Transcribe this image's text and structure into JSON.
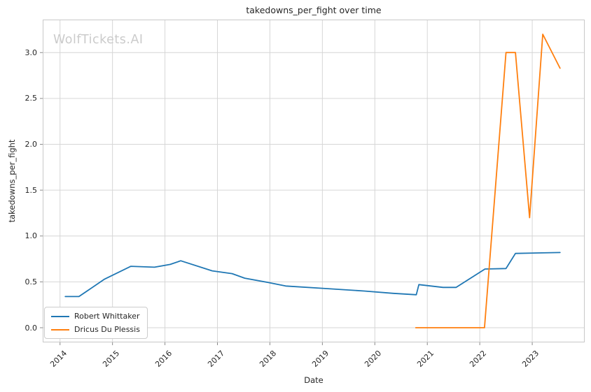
{
  "figure": {
    "background": "#ffffff",
    "watermark": "WolfTickets.AI"
  },
  "chart_data": {
    "type": "line",
    "title": "takedowns_per_fight over time",
    "xlabel": "Date",
    "ylabel": "takedowns_per_fight",
    "grid": true,
    "legend_position": "lower left",
    "xlim": [
      2013.67,
      2024.0
    ],
    "ylim": [
      -0.16,
      3.36
    ],
    "xticks": [
      "2014",
      "2015",
      "2016",
      "2017",
      "2018",
      "2019",
      "2020",
      "2021",
      "2022",
      "2023"
    ],
    "yticks": [
      "0.0",
      "0.5",
      "1.0",
      "1.5",
      "2.0",
      "2.5",
      "3.0"
    ],
    "colors": {
      "grid": "#d6d6d6",
      "spine": "#c8c8c8",
      "tick": "#8a8a8a",
      "text": "#262626",
      "watermark": "#cbcbcb",
      "series_blue": "#1f77b4",
      "series_orange": "#ff7f0e"
    },
    "series": [
      {
        "name": "Robert Whittaker",
        "color": "#1f77b4",
        "points": [
          [
            2014.1,
            0.34
          ],
          [
            2014.36,
            0.34
          ],
          [
            2014.85,
            0.53
          ],
          [
            2015.35,
            0.67
          ],
          [
            2015.8,
            0.66
          ],
          [
            2016.1,
            0.69
          ],
          [
            2016.3,
            0.73
          ],
          [
            2016.9,
            0.62
          ],
          [
            2017.28,
            0.59
          ],
          [
            2017.52,
            0.54
          ],
          [
            2018.0,
            0.49
          ],
          [
            2018.3,
            0.455
          ],
          [
            2019.0,
            0.43
          ],
          [
            2019.8,
            0.4
          ],
          [
            2020.35,
            0.375
          ],
          [
            2020.79,
            0.36
          ],
          [
            2020.84,
            0.47
          ],
          [
            2021.3,
            0.44
          ],
          [
            2021.55,
            0.44
          ],
          [
            2022.1,
            0.64
          ],
          [
            2022.5,
            0.645
          ],
          [
            2022.68,
            0.81
          ],
          [
            2023.1,
            0.815
          ],
          [
            2023.53,
            0.82
          ]
        ]
      },
      {
        "name": "Dricus Du Plessis",
        "color": "#ff7f0e",
        "points": [
          [
            2020.78,
            0.0
          ],
          [
            2022.09,
            0.0
          ],
          [
            2022.5,
            3.0
          ],
          [
            2022.68,
            3.0
          ],
          [
            2022.95,
            1.2
          ],
          [
            2023.2,
            3.2
          ],
          [
            2023.53,
            2.83
          ]
        ]
      }
    ]
  }
}
